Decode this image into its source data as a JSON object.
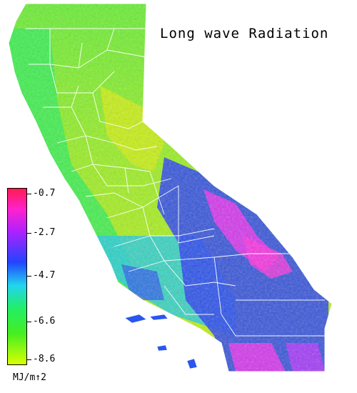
{
  "map": {
    "title": "Long wave Radiation",
    "units": "MJ/m↑2",
    "region": "California",
    "colors": {
      "gradient_top": "#ff1a4d",
      "gradient_magenta": "#ff33ff",
      "gradient_violet": "#7733ff",
      "gradient_blue": "#2244ff",
      "gradient_cyan": "#22d4ee",
      "gradient_green": "#22ee44",
      "gradient_yellow": "#ddff00",
      "border_lines": "#ffffff"
    }
  },
  "legend": {
    "labels": [
      "-0.7",
      "-2.7",
      "-4.7",
      "-6.6",
      "-8.6"
    ]
  }
}
